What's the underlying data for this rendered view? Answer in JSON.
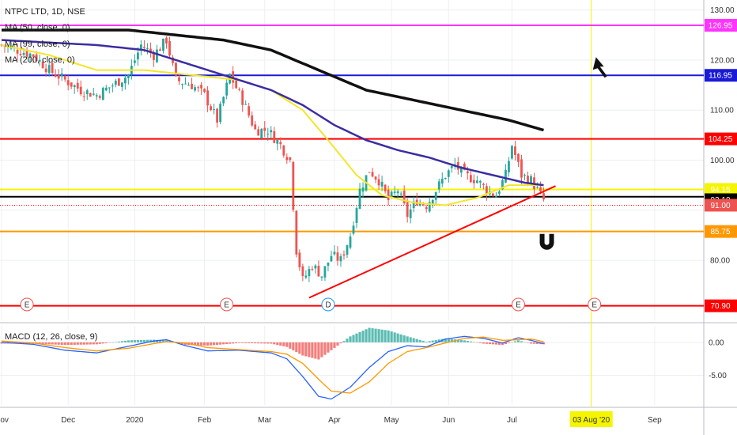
{
  "header": {
    "symbol": "NTPC LTD, 1D, NSE",
    "ma1": "MA (50, close, 0)",
    "ma2": "MA (99, close, 0)",
    "ma3": "MA (200, close, 0)",
    "macd": "MACD (12, 26, close, 9)"
  },
  "colors": {
    "up": "#26a69a",
    "down": "#ef5350",
    "ma50": "#f2e629",
    "ma99": "#3b2ea1",
    "ma200": "#111111",
    "magenta": "#ff33ff",
    "blue": "#1a1ad6",
    "red": "#ff0000",
    "yellow": "#f5f500",
    "orange": "#ff9800",
    "black": "#000000",
    "macd_line": "#2962ff",
    "signal_line": "#ff9800"
  },
  "chart_data": [
    {
      "type": "line",
      "title": "NTPC LTD, 1D, NSE",
      "ylim": [
        68,
        132
      ],
      "yticks": [
        80,
        90,
        100,
        110,
        120,
        130
      ],
      "ytick_labels": [
        "80.00",
        "",
        "100.00",
        "110.00",
        "120.00",
        "130.00"
      ],
      "x_labels": [
        "Nov",
        "Dec",
        "2020",
        "Feb",
        "Mar",
        "Apr",
        "May",
        "Jun",
        "Jul",
        "03 Aug '20",
        "Sep"
      ],
      "x_label_index": [
        0,
        21,
        42,
        64,
        83,
        105,
        123,
        141,
        161,
        186,
        206
      ],
      "n_days": 222,
      "close_anchors": [
        [
          0,
          123
        ],
        [
          5,
          122
        ],
        [
          10,
          121
        ],
        [
          15,
          118
        ],
        [
          20,
          116
        ],
        [
          25,
          114
        ],
        [
          30,
          113
        ],
        [
          35,
          115
        ],
        [
          40,
          117
        ],
        [
          44,
          123
        ],
        [
          48,
          121
        ],
        [
          52,
          124
        ],
        [
          55,
          116
        ],
        [
          60,
          115
        ],
        [
          64,
          113
        ],
        [
          68,
          108
        ],
        [
          72,
          117
        ],
        [
          76,
          112
        ],
        [
          80,
          106
        ],
        [
          84,
          106
        ],
        [
          88,
          103
        ],
        [
          91,
          100
        ],
        [
          93,
          82
        ],
        [
          95,
          76
        ],
        [
          98,
          79
        ],
        [
          101,
          77
        ],
        [
          104,
          81
        ],
        [
          107,
          80
        ],
        [
          110,
          85
        ],
        [
          113,
          94
        ],
        [
          116,
          98
        ],
        [
          119,
          96
        ],
        [
          122,
          92
        ],
        [
          125,
          94
        ],
        [
          128,
          89
        ],
        [
          131,
          92
        ],
        [
          134,
          91
        ],
        [
          137,
          94
        ],
        [
          140,
          97
        ],
        [
          143,
          99
        ],
        [
          146,
          97
        ],
        [
          150,
          96
        ],
        [
          153,
          94
        ],
        [
          156,
          93
        ],
        [
          159,
          97
        ],
        [
          161,
          103
        ],
        [
          164,
          97
        ],
        [
          167,
          96
        ],
        [
          169,
          94
        ],
        [
          171,
          92
        ]
      ],
      "ma50_anchors": [
        [
          0,
          123
        ],
        [
          15,
          121
        ],
        [
          30,
          118
        ],
        [
          45,
          118
        ],
        [
          60,
          117
        ],
        [
          75,
          116
        ],
        [
          85,
          114
        ],
        [
          95,
          110
        ],
        [
          103,
          104
        ],
        [
          112,
          97
        ],
        [
          120,
          93
        ],
        [
          130,
          91.5
        ],
        [
          140,
          91
        ],
        [
          150,
          92.5
        ],
        [
          160,
          95
        ],
        [
          171,
          95
        ]
      ],
      "ma99_anchors": [
        [
          0,
          124
        ],
        [
          15,
          123.5
        ],
        [
          30,
          123
        ],
        [
          45,
          122
        ],
        [
          55,
          120
        ],
        [
          65,
          118
        ],
        [
          75,
          116
        ],
        [
          85,
          114
        ],
        [
          95,
          111
        ],
        [
          105,
          107
        ],
        [
          115,
          104
        ],
        [
          125,
          102
        ],
        [
          135,
          100.5
        ],
        [
          145,
          98.5
        ],
        [
          155,
          97
        ],
        [
          165,
          95.5
        ],
        [
          171,
          95
        ]
      ],
      "ma200_anchors": [
        [
          0,
          126
        ],
        [
          20,
          126
        ],
        [
          40,
          126
        ],
        [
          55,
          125
        ],
        [
          70,
          124
        ],
        [
          85,
          122
        ],
        [
          100,
          118
        ],
        [
          115,
          114
        ],
        [
          130,
          112
        ],
        [
          145,
          110
        ],
        [
          160,
          108
        ],
        [
          171,
          106
        ]
      ],
      "horizontal_lines": [
        {
          "value": 126.95,
          "label": "126.95",
          "color": "#ff33ff",
          "tag": true
        },
        {
          "value": 116.95,
          "label": "116.95",
          "color": "#1a1ad6",
          "tag": true
        },
        {
          "value": 104.25,
          "label": "104.25",
          "color": "#ff0000",
          "tag": true
        },
        {
          "value": 94.15,
          "label": "94.15",
          "color": "#f5f500",
          "tag": true
        },
        {
          "value": 92.7,
          "label": "",
          "color": "#000000",
          "tag": false
        },
        {
          "value": 85.75,
          "label": "85.75",
          "color": "#ff9800",
          "tag": true
        },
        {
          "value": 70.9,
          "label": "70.90",
          "color": "#ff0000",
          "tag": true
        }
      ],
      "last_price": {
        "value": 92.1,
        "label": "92.10"
      },
      "dotted_level": {
        "value": 91.0,
        "label": "91.00"
      },
      "trendline": [
        [
          97,
          72.5
        ],
        [
          171,
          94.2
        ]
      ],
      "vertical_line_index": 186,
      "event_markers": [
        {
          "index": 8,
          "label": "E",
          "color": "#ef5350"
        },
        {
          "index": 71,
          "label": "E",
          "color": "#ef5350"
        },
        {
          "index": 103,
          "label": "D",
          "color": "#2196f3"
        },
        {
          "index": 163,
          "label": "E",
          "color": "#ef5350"
        },
        {
          "index": 187,
          "label": "E",
          "color": "#ef5350"
        }
      ],
      "annotations": [
        {
          "kind": "arrow-icon",
          "index": 188,
          "value": 119
        },
        {
          "kind": "magnet-icon",
          "index": 172,
          "value": 84
        }
      ]
    },
    {
      "type": "bar",
      "title": "MACD (12, 26, close, 9)",
      "ylim": [
        -9.5,
        2.5
      ],
      "yticks": [
        0,
        -5
      ],
      "ytick_labels": [
        "0.00",
        "-5.00"
      ],
      "macd_anchors": [
        [
          0,
          0
        ],
        [
          10,
          -0.3
        ],
        [
          20,
          -1.2
        ],
        [
          30,
          -1.6
        ],
        [
          40,
          -0.6
        ],
        [
          48,
          0.2
        ],
        [
          52,
          0.4
        ],
        [
          58,
          -0.5
        ],
        [
          65,
          -1.3
        ],
        [
          75,
          -1.2
        ],
        [
          85,
          -1.6
        ],
        [
          90,
          -2.5
        ],
        [
          95,
          -5.2
        ],
        [
          100,
          -8.2
        ],
        [
          104,
          -8.6
        ],
        [
          110,
          -6.8
        ],
        [
          116,
          -3.8
        ],
        [
          122,
          -1.4
        ],
        [
          128,
          -0.5
        ],
        [
          134,
          -0.7
        ],
        [
          140,
          0.5
        ],
        [
          146,
          0.9
        ],
        [
          152,
          0.6
        ],
        [
          158,
          -0.1
        ],
        [
          163,
          0.7
        ],
        [
          167,
          0.3
        ],
        [
          171,
          -0.2
        ]
      ],
      "signal_anchors": [
        [
          0,
          0.2
        ],
        [
          10,
          -0.1
        ],
        [
          20,
          -0.8
        ],
        [
          30,
          -1.3
        ],
        [
          40,
          -0.9
        ],
        [
          48,
          -0.2
        ],
        [
          52,
          0.1
        ],
        [
          58,
          -0.1
        ],
        [
          65,
          -0.8
        ],
        [
          75,
          -1.1
        ],
        [
          85,
          -1.4
        ],
        [
          90,
          -1.8
        ],
        [
          95,
          -3.2
        ],
        [
          100,
          -5.6
        ],
        [
          104,
          -7.4
        ],
        [
          110,
          -7.7
        ],
        [
          116,
          -6.0
        ],
        [
          122,
          -3.2
        ],
        [
          128,
          -1.4
        ],
        [
          134,
          -0.8
        ],
        [
          140,
          -0.1
        ],
        [
          146,
          0.6
        ],
        [
          152,
          0.8
        ],
        [
          158,
          0.3
        ],
        [
          163,
          0.4
        ],
        [
          167,
          0.5
        ],
        [
          171,
          0.1
        ]
      ]
    }
  ]
}
